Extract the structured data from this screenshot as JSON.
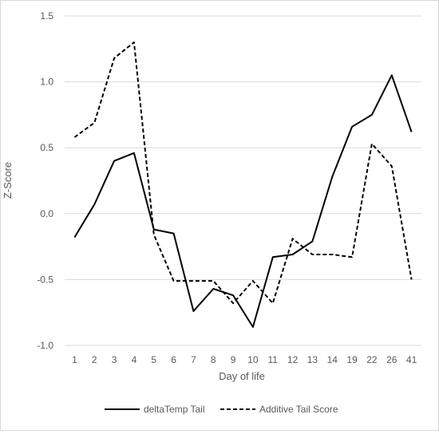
{
  "chart_data": {
    "type": "line",
    "title": "",
    "xlabel": "Day of life",
    "ylabel": "Z-Score",
    "categories": [
      "1",
      "2",
      "3",
      "4",
      "5",
      "6",
      "7",
      "8",
      "9",
      "10",
      "11",
      "12",
      "13",
      "14",
      "19",
      "22",
      "26",
      "41"
    ],
    "ylim": [
      -1.0,
      1.5
    ],
    "yticks": [
      "-1.0",
      "-0.5",
      "0.0",
      "0.5",
      "1.0",
      "1.5"
    ],
    "grid": true,
    "legend_position": "bottom",
    "series": [
      {
        "name": "deltaTemp Tail",
        "style": "solid",
        "color": "#000000",
        "values": [
          -0.18,
          0.07,
          0.4,
          0.46,
          -0.12,
          -0.15,
          -0.74,
          -0.57,
          -0.62,
          -0.86,
          -0.33,
          -0.31,
          -0.21,
          0.28,
          0.66,
          0.75,
          1.05,
          0.62
        ]
      },
      {
        "name": "Additive Tail Score",
        "style": "dashed",
        "color": "#000000",
        "values": [
          0.58,
          0.69,
          1.18,
          1.3,
          -0.16,
          -0.51,
          -0.51,
          -0.51,
          -0.68,
          -0.51,
          -0.68,
          -0.19,
          -0.31,
          -0.31,
          -0.33,
          0.53,
          0.36,
          -0.5
        ]
      }
    ]
  }
}
